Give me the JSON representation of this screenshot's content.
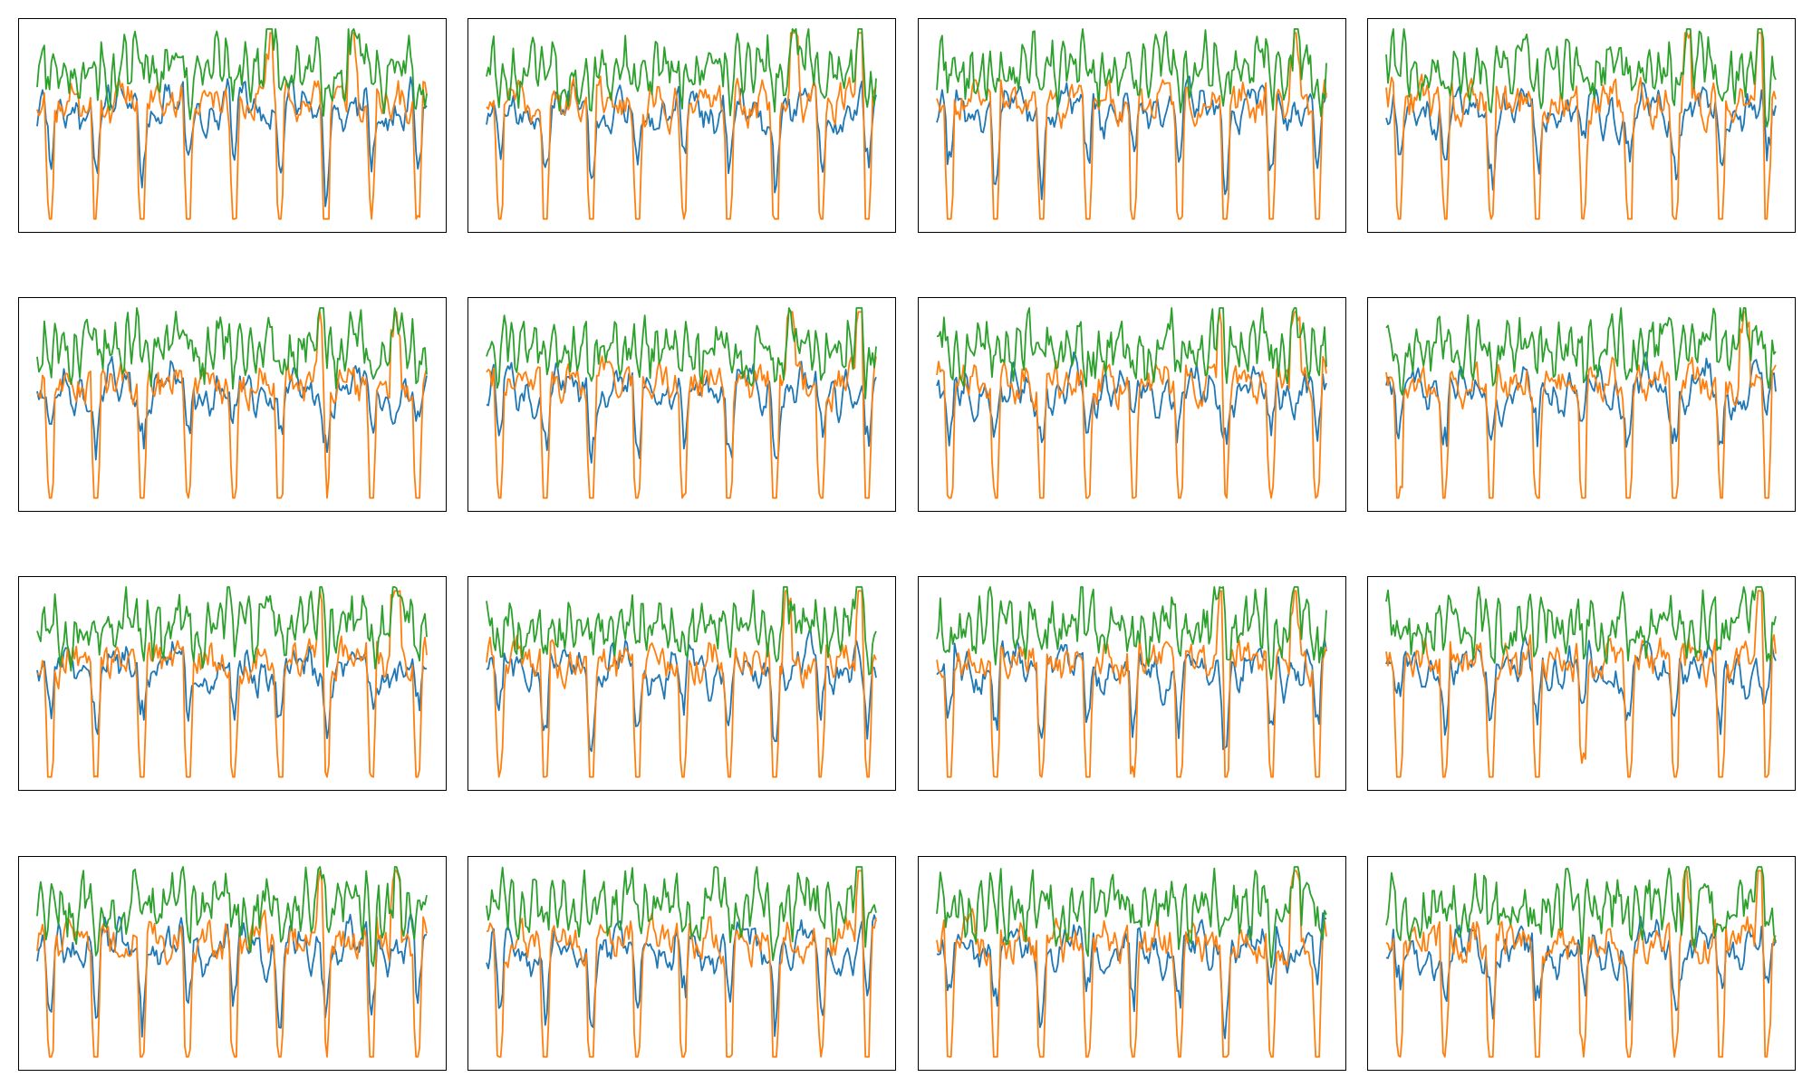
{
  "figure": {
    "rows": 4,
    "cols": 4,
    "series_colors": [
      "#1f77b4",
      "#ff7f0e",
      "#2ca02c"
    ]
  },
  "chart_data": [
    {
      "type": "line",
      "title": "",
      "xlabel": "",
      "ylabel": "",
      "grid": false,
      "x_ticks": false,
      "y_ticks": false,
      "series_count": 3,
      "colors": [
        "#1f77b4",
        "#ff7f0e",
        "#2ca02c"
      ],
      "spikes": [
        0.6,
        0.81
      ],
      "seed": 11
    },
    {
      "type": "line",
      "title": "",
      "xlabel": "",
      "ylabel": "",
      "grid": false,
      "x_ticks": false,
      "y_ticks": false,
      "series_count": 3,
      "colors": [
        "#1f77b4",
        "#ff7f0e",
        "#2ca02c"
      ],
      "spikes": [
        0.79,
        0.96
      ],
      "seed": 23
    },
    {
      "type": "line",
      "title": "",
      "xlabel": "",
      "ylabel": "",
      "grid": false,
      "x_ticks": false,
      "y_ticks": false,
      "series_count": 3,
      "colors": [
        "#1f77b4",
        "#ff7f0e",
        "#2ca02c"
      ],
      "spikes": [
        0.92
      ],
      "seed": 37
    },
    {
      "type": "line",
      "title": "",
      "xlabel": "",
      "ylabel": "",
      "grid": false,
      "x_ticks": false,
      "y_ticks": false,
      "series_count": 3,
      "colors": [
        "#1f77b4",
        "#ff7f0e",
        "#2ca02c"
      ],
      "spikes": [
        0.77,
        0.96
      ],
      "seed": 41
    },
    {
      "type": "line",
      "title": "",
      "xlabel": "",
      "ylabel": "",
      "grid": false,
      "x_ticks": false,
      "y_ticks": false,
      "series_count": 3,
      "colors": [
        "#1f77b4",
        "#ff7f0e",
        "#2ca02c"
      ],
      "spikes": [
        0.73,
        0.92
      ],
      "seed": 53
    },
    {
      "type": "line",
      "title": "",
      "xlabel": "",
      "ylabel": "",
      "grid": false,
      "x_ticks": false,
      "y_ticks": false,
      "series_count": 3,
      "colors": [
        "#1f77b4",
        "#ff7f0e",
        "#2ca02c"
      ],
      "spikes": [
        0.78,
        0.96
      ],
      "seed": 61
    },
    {
      "type": "line",
      "title": "",
      "xlabel": "",
      "ylabel": "",
      "grid": false,
      "x_ticks": false,
      "y_ticks": false,
      "series_count": 3,
      "colors": [
        "#1f77b4",
        "#ff7f0e",
        "#2ca02c"
      ],
      "spikes": [
        0.73,
        0.92
      ],
      "seed": 71
    },
    {
      "type": "line",
      "title": "",
      "xlabel": "",
      "ylabel": "",
      "grid": false,
      "x_ticks": false,
      "y_ticks": false,
      "series_count": 3,
      "colors": [
        "#1f77b4",
        "#ff7f0e",
        "#2ca02c"
      ],
      "spikes": [
        0.92
      ],
      "seed": 83
    },
    {
      "type": "line",
      "title": "",
      "xlabel": "",
      "ylabel": "",
      "grid": false,
      "x_ticks": false,
      "y_ticks": false,
      "series_count": 3,
      "colors": [
        "#1f77b4",
        "#ff7f0e",
        "#2ca02c"
      ],
      "spikes": [
        0.73,
        0.92
      ],
      "seed": 97
    },
    {
      "type": "line",
      "title": "",
      "xlabel": "",
      "ylabel": "",
      "grid": false,
      "x_ticks": false,
      "y_ticks": false,
      "series_count": 3,
      "colors": [
        "#1f77b4",
        "#ff7f0e",
        "#2ca02c"
      ],
      "spikes": [
        0.77,
        0.96
      ],
      "seed": 101
    },
    {
      "type": "line",
      "title": "",
      "xlabel": "",
      "ylabel": "",
      "grid": false,
      "x_ticks": false,
      "y_ticks": false,
      "series_count": 3,
      "colors": [
        "#1f77b4",
        "#ff7f0e",
        "#2ca02c"
      ],
      "spikes": [
        0.73,
        0.92
      ],
      "seed": 113
    },
    {
      "type": "line",
      "title": "",
      "xlabel": "",
      "ylabel": "",
      "grid": false,
      "x_ticks": false,
      "y_ticks": false,
      "series_count": 3,
      "colors": [
        "#1f77b4",
        "#ff7f0e",
        "#2ca02c"
      ],
      "spikes": [
        0.96
      ],
      "seed": 127
    },
    {
      "type": "line",
      "title": "",
      "xlabel": "",
      "ylabel": "",
      "grid": false,
      "x_ticks": false,
      "y_ticks": false,
      "series_count": 3,
      "colors": [
        "#1f77b4",
        "#ff7f0e",
        "#2ca02c"
      ],
      "spikes": [
        0.73,
        0.92
      ],
      "seed": 131
    },
    {
      "type": "line",
      "title": "",
      "xlabel": "",
      "ylabel": "",
      "grid": false,
      "x_ticks": false,
      "y_ticks": false,
      "series_count": 3,
      "colors": [
        "#1f77b4",
        "#ff7f0e",
        "#2ca02c"
      ],
      "spikes": [
        0.96
      ],
      "seed": 149
    },
    {
      "type": "line",
      "title": "",
      "xlabel": "",
      "ylabel": "",
      "grid": false,
      "x_ticks": false,
      "y_ticks": false,
      "series_count": 3,
      "colors": [
        "#1f77b4",
        "#ff7f0e",
        "#2ca02c"
      ],
      "spikes": [
        0.92
      ],
      "seed": 157
    },
    {
      "type": "line",
      "title": "",
      "xlabel": "",
      "ylabel": "",
      "grid": false,
      "x_ticks": false,
      "y_ticks": false,
      "series_count": 3,
      "colors": [
        "#1f77b4",
        "#ff7f0e",
        "#2ca02c"
      ],
      "spikes": [
        0.77,
        0.96
      ],
      "seed": 167
    }
  ]
}
